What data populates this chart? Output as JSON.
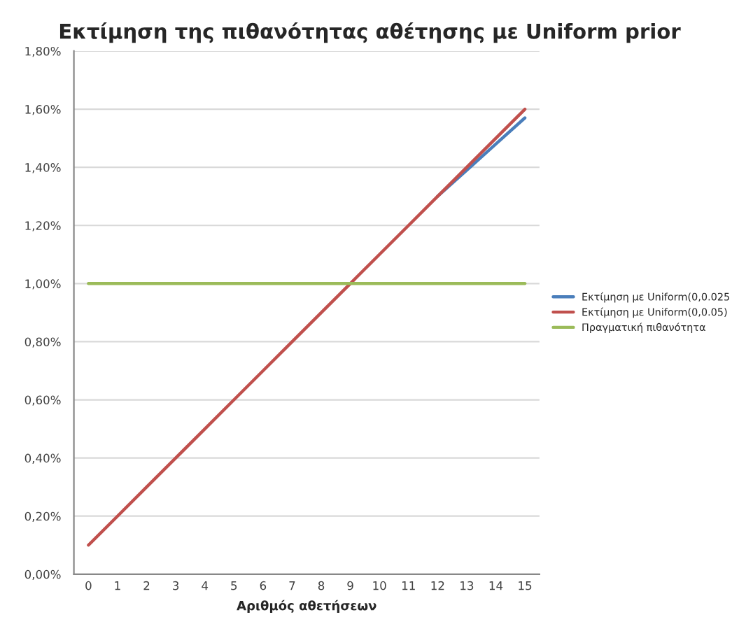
{
  "chart_data": {
    "type": "line",
    "title": "Εκτίμηση της πιθανότητας αθέτησης με Uniform prior",
    "xlabel": "Αριθμός αθετήσεων",
    "categories": [
      "0",
      "1",
      "2",
      "3",
      "4",
      "5",
      "6",
      "7",
      "8",
      "9",
      "10",
      "11",
      "12",
      "13",
      "14",
      "15"
    ],
    "series": [
      {
        "name": "Εκτίμηση με Uniform(0,0.025",
        "color": "#4a7ebb",
        "values": [
          null,
          null,
          null,
          null,
          null,
          null,
          null,
          null,
          null,
          null,
          null,
          null,
          1.3,
          1.39,
          1.48,
          1.57
        ]
      },
      {
        "name": "Εκτίμηση με Uniform(0,0.05)",
        "color": "#c0504d",
        "values": [
          0.1,
          0.2,
          0.3,
          0.4,
          0.5,
          0.6,
          0.7,
          0.8,
          0.9,
          1.0,
          1.1,
          1.2,
          1.3,
          1.4,
          1.5,
          1.6
        ]
      },
      {
        "name": "Πραγματική πιθανότητα",
        "color": "#9bbb59",
        "values": [
          1.0,
          1.0,
          1.0,
          1.0,
          1.0,
          1.0,
          1.0,
          1.0,
          1.0,
          1.0,
          1.0,
          1.0,
          1.0,
          1.0,
          1.0,
          1.0
        ]
      }
    ],
    "ylim": [
      0,
      1.8
    ],
    "yticks": [
      {
        "value": 0,
        "label": "0,00%"
      },
      {
        "value": 0.2,
        "label": "0,20%"
      },
      {
        "value": 0.4,
        "label": "0,40%"
      },
      {
        "value": 0.6,
        "label": "0,60%"
      },
      {
        "value": 0.8,
        "label": "0,80%"
      },
      {
        "value": 1.0,
        "label": "1,00%"
      },
      {
        "value": 1.2,
        "label": "1,20%"
      },
      {
        "value": 1.4,
        "label": "1,40%"
      },
      {
        "value": 1.6,
        "label": "1,60%"
      },
      {
        "value": 1.8,
        "label": "1,80%"
      }
    ],
    "grid": "y",
    "legend": "right",
    "marker": "none",
    "line_style": "solid"
  }
}
